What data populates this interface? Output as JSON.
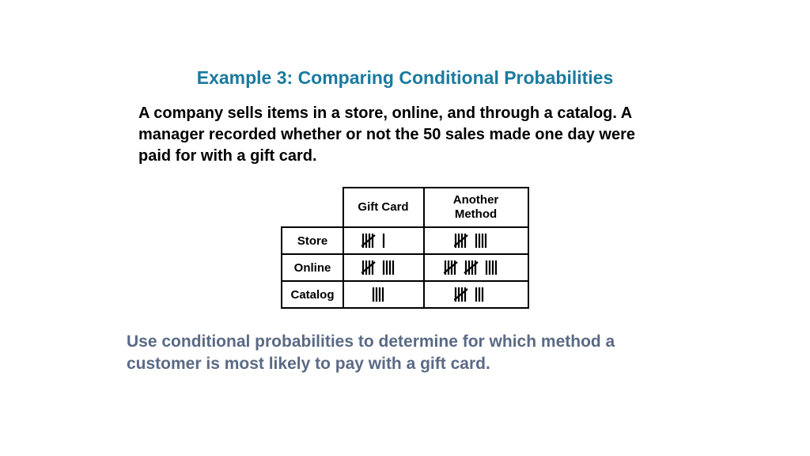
{
  "title": "Example 3: Comparing Conditional Probabilities",
  "description": "A company sells items in a store, online, and through a catalog. A manager recorded whether or not the 50 sales made one day were paid for with a gift card.",
  "table": {
    "col_headers": [
      "Gift Card",
      "Another Method"
    ],
    "row_headers": [
      "Store",
      "Online",
      "Catalog"
    ],
    "values": [
      [
        6,
        9
      ],
      [
        9,
        14
      ],
      [
        4,
        8
      ]
    ]
  },
  "question": "Use conditional probabilities to determine for which method a customer is most likely to pay with a gift card.",
  "colors": {
    "title": "#1a7a9e",
    "body": "#000000",
    "question": "#5a6a85",
    "border": "#000000",
    "background": "#ffffff"
  },
  "fonts": {
    "title_size": 23,
    "body_size": 20,
    "question_size": 21,
    "table_header_size": 15
  }
}
